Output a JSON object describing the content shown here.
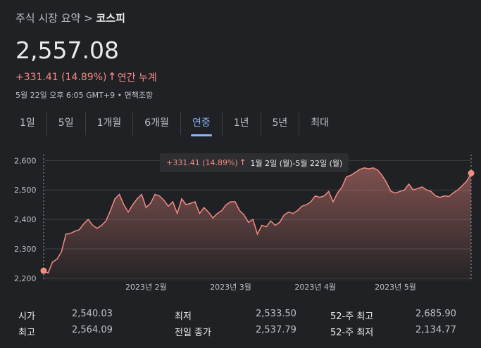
{
  "breadcrumb": {
    "parent": "주식 시장 요약",
    "separator": ">",
    "current": "코스피"
  },
  "price": "2,557.08",
  "change": {
    "value": "+331.41 (14.89%)",
    "label": "연간 누계",
    "arrow": "up-arrow-icon"
  },
  "meta": {
    "time": "5월 22일 오후 6:05 GMT+9",
    "bullet": "•",
    "disclaimer": "면책조항"
  },
  "tabs": [
    "1일",
    "5일",
    "1개월",
    "6개월",
    "연중",
    "1년",
    "5년",
    "최대"
  ],
  "active_tab": "연중",
  "tooltip": {
    "change": "+331.41 (14.89%)",
    "range": "1월 2일 (월)-5월 22일 (월)"
  },
  "colors": {
    "background": "#202124",
    "accent_up": "#f28b82",
    "tab_active": "#8ab4f8"
  },
  "chart_data": {
    "type": "area",
    "yticks": [
      "2,600",
      "2,500",
      "2,400",
      "2,300",
      "2,200"
    ],
    "ytick_values": [
      2600,
      2500,
      2400,
      2300,
      2200
    ],
    "ylim": [
      2190,
      2620
    ],
    "xticks": [
      {
        "label": "2023년 2월",
        "x": 23
      },
      {
        "label": "2023년 3월",
        "x": 42
      },
      {
        "label": "2023년 4월",
        "x": 61
      },
      {
        "label": "2023년 5월",
        "x": 79
      }
    ],
    "xlim": [
      0,
      97
    ],
    "grid": true,
    "values": [
      2225.67,
      2218,
      2255,
      2265,
      2290,
      2350,
      2352,
      2360,
      2365,
      2385,
      2400,
      2380,
      2370,
      2380,
      2395,
      2430,
      2470,
      2485,
      2450,
      2425,
      2450,
      2470,
      2485,
      2440,
      2455,
      2485,
      2480,
      2465,
      2445,
      2460,
      2420,
      2470,
      2450,
      2455,
      2460,
      2420,
      2440,
      2425,
      2405,
      2420,
      2430,
      2450,
      2460,
      2460,
      2430,
      2415,
      2390,
      2400,
      2350,
      2380,
      2375,
      2395,
      2380,
      2390,
      2415,
      2425,
      2420,
      2430,
      2445,
      2450,
      2460,
      2480,
      2475,
      2480,
      2495,
      2460,
      2490,
      2510,
      2545,
      2550,
      2560,
      2570,
      2575,
      2572,
      2575,
      2568,
      2550,
      2525,
      2495,
      2490,
      2495,
      2500,
      2520,
      2500,
      2505,
      2510,
      2500,
      2495,
      2480,
      2475,
      2480,
      2478,
      2490,
      2500,
      2515,
      2530,
      2557.08
    ],
    "series": [
      {
        "values": "values"
      }
    ]
  },
  "stats": [
    {
      "label": "시가",
      "value": "2,540.03"
    },
    {
      "label": "최저",
      "value": "2,533.50"
    },
    {
      "label": "52-주 최고",
      "value": "2,685.90"
    },
    {
      "label": "최고",
      "value": "2,564.09"
    },
    {
      "label": "전일 종가",
      "value": "2,537.79"
    },
    {
      "label": "52-주 최저",
      "value": "2,134.77"
    }
  ]
}
